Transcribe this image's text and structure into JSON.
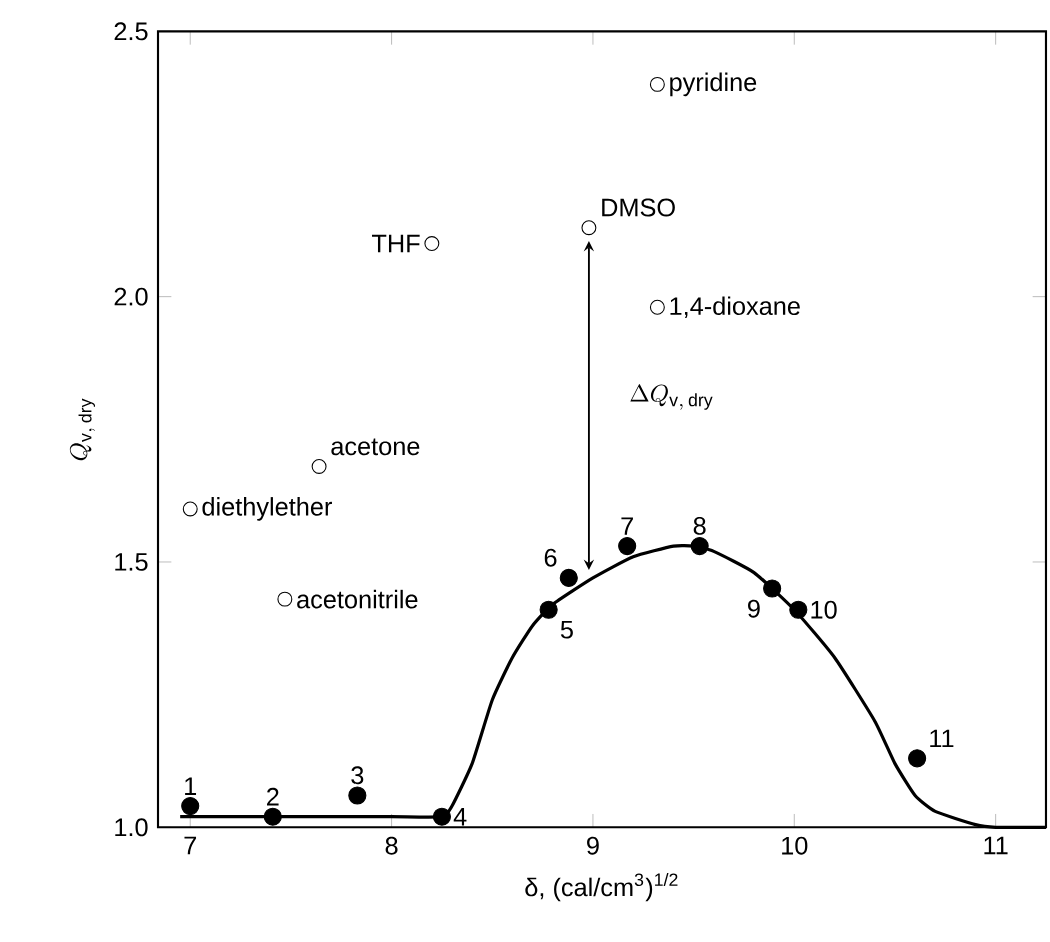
{
  "chart_data": {
    "type": "scatter",
    "xlabel": "δ, (cal/cm$^{3}$)$^{1/2}$",
    "ylabel": "Q_{\\mathrm{v,\\,dry}}",
    "xlim": [
      6.84,
      11.25
    ],
    "ylim": [
      1.0,
      2.5
    ],
    "xticks": [
      7,
      8,
      9,
      10,
      11
    ],
    "yticks": [
      {
        "value": 1.0,
        "label": "1.0"
      },
      {
        "value": 1.5,
        "label": "1.5"
      },
      {
        "value": 2.0,
        "label": "2.0"
      },
      {
        "value": 2.5,
        "label": "2.5"
      }
    ],
    "annotations": [
      {
        "text": "1",
        "x": 7.0,
        "y": 1.04
      },
      {
        "text": "2",
        "x": 7.41,
        "y": 1.02
      },
      {
        "text": "3",
        "x": 7.83,
        "y": 1.06
      },
      {
        "text": "4",
        "x": 8.25,
        "y": 1.02
      },
      {
        "text": "5",
        "x": 8.78,
        "y": 1.41
      },
      {
        "text": "6",
        "x": 8.88,
        "y": 1.47
      },
      {
        "text": "7",
        "x": 9.17,
        "y": 1.53
      },
      {
        "text": "8",
        "x": 9.53,
        "y": 1.53
      },
      {
        "text": "9",
        "x": 9.89,
        "y": 1.45
      },
      {
        "text": "10",
        "x": 10.02,
        "y": 1.41
      },
      {
        "text": "11",
        "x": 10.61,
        "y": 1.13
      },
      {
        "text": "pyridine",
        "x": 9.32,
        "y": 2.4
      },
      {
        "text": "DMSO",
        "x": 8.98,
        "y": 2.13
      },
      {
        "text": "THF",
        "x": 8.2,
        "y": 2.1
      },
      {
        "text": "1,4-dioxane",
        "x": 9.32,
        "y": 1.98
      },
      {
        "text": "acetone",
        "x": 7.64,
        "y": 1.68
      },
      {
        "text": "diethylether",
        "x": 7.0,
        "y": 1.6
      },
      {
        "text": "acetonitrile",
        "x": 7.47,
        "y": 1.43
      },
      "\\Delta Q_{\\mathrm{v,\\,dry}}"
    ],
    "series": [
      {
        "marker": "circle",
        "color": "#000000",
        "x": [
          7.0,
          7.41,
          7.83,
          8.25,
          8.78,
          8.88,
          9.17,
          9.53,
          9.89,
          10.02,
          10.61
        ],
        "values": [
          1.04,
          1.02,
          1.06,
          1.02,
          1.41,
          1.47,
          1.53,
          1.53,
          1.45,
          1.41,
          1.13
        ]
      },
      {
        "marker": "circle",
        "color": "#000000",
        "x": [
          9.32,
          8.98,
          8.2,
          9.32,
          7.64,
          7.0,
          7.47
        ],
        "values": [
          2.4,
          2.13,
          2.1,
          1.98,
          1.68,
          1.6,
          1.43
        ]
      },
      {
        "type": "line",
        "marker": "none",
        "color": "#000000",
        "x": [
          6.95,
          7.5,
          8.0,
          8.25,
          8.3,
          8.4,
          8.5,
          8.6,
          8.7,
          8.8,
          9.0,
          9.2,
          9.4,
          9.5,
          9.6,
          9.8,
          10.0,
          10.2,
          10.4,
          10.5,
          10.6,
          10.7,
          10.9,
          11.0,
          11.25
        ],
        "values": [
          1.02,
          1.02,
          1.02,
          1.02,
          1.04,
          1.12,
          1.24,
          1.32,
          1.38,
          1.42,
          1.47,
          1.51,
          1.53,
          1.53,
          1.52,
          1.48,
          1.41,
          1.32,
          1.2,
          1.12,
          1.06,
          1.03,
          1.005,
          1.0,
          1.0
        ]
      }
    ]
  }
}
